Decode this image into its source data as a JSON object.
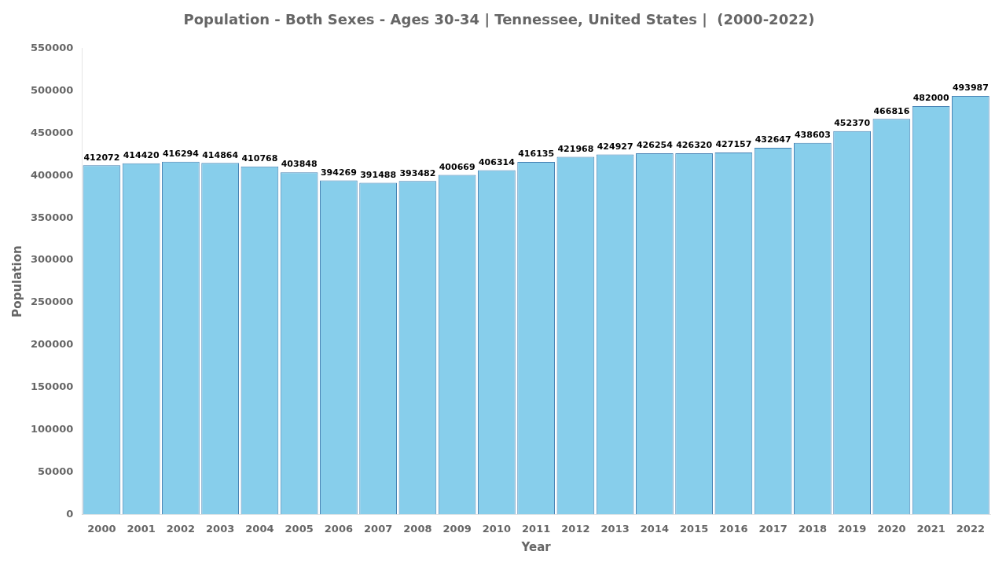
{
  "chart_data": {
    "type": "bar",
    "title": "Population - Both Sexes - Ages 30-34 | Tennessee, United States |  (2000-2022)",
    "x_label": "Year",
    "y_label": "Population",
    "categories": [
      "2000",
      "2001",
      "2002",
      "2003",
      "2004",
      "2005",
      "2006",
      "2007",
      "2008",
      "2009",
      "2010",
      "2011",
      "2012",
      "2013",
      "2014",
      "2015",
      "2016",
      "2017",
      "2018",
      "2019",
      "2020",
      "2021",
      "2022"
    ],
    "values": [
      412072,
      414420,
      416294,
      414864,
      410768,
      403848,
      394269,
      391488,
      393482,
      400669,
      406314,
      416135,
      421968,
      424927,
      426254,
      426320,
      427157,
      432647,
      438603,
      452370,
      466816,
      482000,
      493987
    ],
    "color": "#87CEEB",
    "ylim": [
      0,
      550000
    ],
    "yticks": [
      0,
      50000,
      100000,
      150000,
      200000,
      250000,
      300000,
      350000,
      400000,
      450000,
      500000,
      550000
    ],
    "grid": false,
    "data_labels": true
  }
}
